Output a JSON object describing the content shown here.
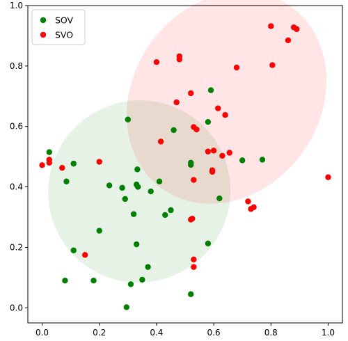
{
  "chart_data": {
    "type": "scatter",
    "title": "",
    "xlabel": "",
    "ylabel": "",
    "xlim": [
      -0.05,
      1.05
    ],
    "ylim": [
      -0.05,
      1.0
    ],
    "xticks": [
      "0.0",
      "0.2",
      "0.4",
      "0.6",
      "0.8",
      "1.0"
    ],
    "yticks": [
      "0.0",
      "0.2",
      "0.4",
      "0.6",
      "0.8",
      "1.0"
    ],
    "xtick_values": [
      0.0,
      0.2,
      0.4,
      0.6,
      0.8,
      1.0
    ],
    "ytick_values": [
      0.0,
      0.2,
      0.4,
      0.6,
      0.8,
      1.0
    ],
    "grid": false,
    "legend": {
      "placement": "top-left"
    },
    "series": [
      {
        "name": "SOV",
        "color": "#008000",
        "points": [
          [
            0.025,
            0.515
          ],
          [
            0.11,
            0.477
          ],
          [
            0.085,
            0.418
          ],
          [
            0.2,
            0.255
          ],
          [
            0.11,
            0.19
          ],
          [
            0.08,
            0.09
          ],
          [
            0.18,
            0.09
          ],
          [
            0.235,
            0.405
          ],
          [
            0.28,
            0.397
          ],
          [
            0.29,
            0.36
          ],
          [
            0.3,
            0.623
          ],
          [
            0.32,
            0.31
          ],
          [
            0.33,
            0.21
          ],
          [
            0.33,
            0.408
          ],
          [
            0.333,
            0.458
          ],
          [
            0.335,
            0.4
          ],
          [
            0.37,
            0.135
          ],
          [
            0.35,
            0.093
          ],
          [
            0.31,
            0.078
          ],
          [
            0.295,
            0.002
          ],
          [
            0.38,
            0.385
          ],
          [
            0.41,
            0.418
          ],
          [
            0.43,
            0.307
          ],
          [
            0.45,
            0.323
          ],
          [
            0.46,
            0.588
          ],
          [
            0.52,
            0.48
          ],
          [
            0.52,
            0.473
          ],
          [
            0.52,
            0.045
          ],
          [
            0.58,
            0.615
          ],
          [
            0.59,
            0.72
          ],
          [
            0.58,
            0.213
          ],
          [
            0.62,
            0.362
          ],
          [
            0.7,
            0.488
          ],
          [
            0.77,
            0.49
          ]
        ]
      },
      {
        "name": "SVO",
        "color": "#ff0000",
        "points": [
          [
            0.0,
            0.472
          ],
          [
            0.025,
            0.49
          ],
          [
            0.025,
            0.48
          ],
          [
            0.07,
            0.463
          ],
          [
            0.15,
            0.175
          ],
          [
            0.2,
            0.483
          ],
          [
            0.4,
            0.813
          ],
          [
            0.415,
            0.55
          ],
          [
            0.47,
            0.68
          ],
          [
            0.48,
            0.832
          ],
          [
            0.48,
            0.822
          ],
          [
            0.52,
            0.71
          ],
          [
            0.52,
            0.292
          ],
          [
            0.525,
            0.295
          ],
          [
            0.53,
            0.16
          ],
          [
            0.53,
            0.135
          ],
          [
            0.53,
            0.423
          ],
          [
            0.53,
            0.598
          ],
          [
            0.54,
            0.59
          ],
          [
            0.58,
            0.517
          ],
          [
            0.595,
            0.45
          ],
          [
            0.595,
            0.455
          ],
          [
            0.6,
            0.52
          ],
          [
            0.615,
            0.66
          ],
          [
            0.63,
            0.503
          ],
          [
            0.64,
            0.638
          ],
          [
            0.655,
            0.513
          ],
          [
            0.68,
            0.795
          ],
          [
            0.72,
            0.352
          ],
          [
            0.73,
            0.327
          ],
          [
            0.74,
            0.333
          ],
          [
            0.8,
            0.932
          ],
          [
            0.805,
            0.803
          ],
          [
            0.86,
            0.885
          ],
          [
            0.88,
            0.928
          ],
          [
            0.89,
            0.922
          ],
          [
            1.0,
            0.432
          ]
        ]
      }
    ],
    "ellipses": [
      {
        "series": "SOV",
        "color": "#008000",
        "opacity": 0.1,
        "center": [
          0.34,
          0.385
        ],
        "width": 0.64,
        "height": 0.6,
        "angle_deg": 45
      },
      {
        "series": "SVO",
        "color": "#ff0000",
        "opacity": 0.1,
        "center": [
          0.645,
          0.695
        ],
        "width": 0.78,
        "height": 0.62,
        "angle_deg": 55
      }
    ]
  }
}
